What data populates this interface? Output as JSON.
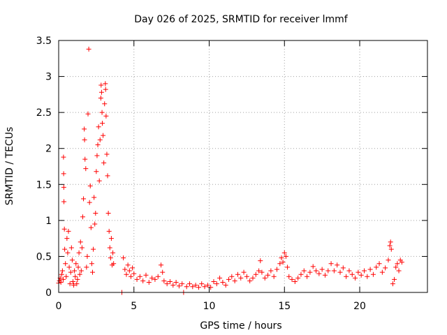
{
  "chart_data": {
    "type": "scatter",
    "title": "Day 026 of 2025, SRMTID for receiver lmmf",
    "xlabel": "GPS time / hours",
    "ylabel": "SRMTID / TECUs",
    "xlim": [
      0,
      24.5
    ],
    "ylim": [
      0,
      3.5
    ],
    "xticks": [
      0,
      5,
      10,
      15,
      20
    ],
    "xtick_labels": [
      "0",
      "5",
      "10",
      "15",
      "20"
    ],
    "yticks": [
      0,
      0.5,
      1,
      1.5,
      2,
      2.5,
      3,
      3.5
    ],
    "ytick_labels": [
      "0",
      "0.5",
      "1",
      "1.5",
      "2",
      "2.5",
      "3",
      "3.5"
    ],
    "grid": true,
    "marker": "+",
    "series_color": "#ff0000",
    "series": [
      {
        "name": "lmmf",
        "points": [
          [
            0.0,
            0.13
          ],
          [
            0.05,
            0.16
          ],
          [
            0.1,
            0.2
          ],
          [
            0.15,
            0.14
          ],
          [
            0.2,
            0.25
          ],
          [
            0.25,
            0.3
          ],
          [
            0.3,
            0.18
          ],
          [
            0.32,
            1.88
          ],
          [
            0.33,
            1.65
          ],
          [
            0.34,
            1.46
          ],
          [
            0.35,
            1.26
          ],
          [
            0.38,
            0.88
          ],
          [
            0.4,
            0.6
          ],
          [
            0.45,
            0.4
          ],
          [
            0.5,
            0.22
          ],
          [
            0.55,
            0.75
          ],
          [
            0.6,
            0.55
          ],
          [
            0.65,
            0.85
          ],
          [
            0.7,
            0.35
          ],
          [
            0.75,
            0.12
          ],
          [
            0.8,
            0.28
          ],
          [
            0.85,
            0.62
          ],
          [
            0.9,
            0.45
          ],
          [
            0.95,
            0.15
          ],
          [
            1.0,
            0.1
          ],
          [
            1.05,
            0.3
          ],
          [
            1.1,
            0.22
          ],
          [
            1.15,
            0.4
          ],
          [
            1.2,
            0.12
          ],
          [
            1.25,
            0.18
          ],
          [
            1.3,
            0.35
          ],
          [
            1.35,
            0.55
          ],
          [
            1.4,
            0.25
          ],
          [
            1.45,
            0.7
          ],
          [
            1.5,
            0.3
          ],
          [
            1.55,
            0.62
          ],
          [
            1.6,
            1.05
          ],
          [
            1.65,
            1.3
          ],
          [
            1.7,
            2.27
          ],
          [
            1.72,
            2.12
          ],
          [
            1.75,
            1.85
          ],
          [
            1.8,
            1.72
          ],
          [
            1.85,
            0.35
          ],
          [
            1.9,
            0.5
          ],
          [
            1.95,
            2.48
          ],
          [
            2.0,
            3.38
          ],
          [
            2.05,
            1.25
          ],
          [
            2.1,
            1.48
          ],
          [
            2.15,
            0.9
          ],
          [
            2.2,
            0.4
          ],
          [
            2.25,
            0.28
          ],
          [
            2.3,
            0.6
          ],
          [
            2.35,
            1.32
          ],
          [
            2.4,
            0.95
          ],
          [
            2.45,
            1.1
          ],
          [
            2.5,
            1.68
          ],
          [
            2.55,
            1.9
          ],
          [
            2.6,
            2.05
          ],
          [
            2.65,
            2.3
          ],
          [
            2.7,
            1.55
          ],
          [
            2.75,
            2.12
          ],
          [
            2.8,
            2.7
          ],
          [
            2.82,
            2.88
          ],
          [
            2.85,
            2.78
          ],
          [
            2.88,
            2.5
          ],
          [
            2.9,
            2.35
          ],
          [
            2.95,
            2.18
          ],
          [
            3.0,
            1.8
          ],
          [
            3.05,
            2.62
          ],
          [
            3.1,
            2.9
          ],
          [
            3.12,
            2.82
          ],
          [
            3.15,
            2.45
          ],
          [
            3.2,
            1.92
          ],
          [
            3.25,
            1.62
          ],
          [
            3.3,
            1.1
          ],
          [
            3.35,
            0.85
          ],
          [
            3.4,
            0.62
          ],
          [
            3.45,
            0.48
          ],
          [
            3.5,
            0.75
          ],
          [
            3.55,
            0.38
          ],
          [
            3.6,
            0.55
          ],
          [
            3.65,
            0.4
          ],
          [
            4.2,
            0.0
          ],
          [
            4.3,
            0.48
          ],
          [
            4.4,
            0.32
          ],
          [
            4.5,
            0.25
          ],
          [
            4.6,
            0.38
          ],
          [
            4.7,
            0.3
          ],
          [
            4.8,
            0.22
          ],
          [
            4.9,
            0.34
          ],
          [
            5.0,
            0.26
          ],
          [
            5.2,
            0.18
          ],
          [
            5.4,
            0.22
          ],
          [
            5.6,
            0.16
          ],
          [
            5.8,
            0.24
          ],
          [
            6.0,
            0.14
          ],
          [
            6.2,
            0.2
          ],
          [
            6.4,
            0.18
          ],
          [
            6.6,
            0.22
          ],
          [
            6.8,
            0.38
          ],
          [
            6.9,
            0.28
          ],
          [
            7.0,
            0.16
          ],
          [
            7.2,
            0.12
          ],
          [
            7.4,
            0.15
          ],
          [
            7.6,
            0.1
          ],
          [
            7.8,
            0.14
          ],
          [
            8.0,
            0.09
          ],
          [
            8.2,
            0.12
          ],
          [
            8.3,
            0.0
          ],
          [
            8.5,
            0.08
          ],
          [
            8.7,
            0.12
          ],
          [
            8.9,
            0.08
          ],
          [
            9.1,
            0.1
          ],
          [
            9.3,
            0.07
          ],
          [
            9.5,
            0.12
          ],
          [
            9.7,
            0.08
          ],
          [
            9.9,
            0.1
          ],
          [
            10.1,
            0.07
          ],
          [
            10.3,
            0.15
          ],
          [
            10.5,
            0.12
          ],
          [
            10.7,
            0.2
          ],
          [
            10.9,
            0.14
          ],
          [
            11.1,
            0.1
          ],
          [
            11.3,
            0.18
          ],
          [
            11.5,
            0.22
          ],
          [
            11.7,
            0.16
          ],
          [
            11.9,
            0.25
          ],
          [
            12.1,
            0.2
          ],
          [
            12.3,
            0.28
          ],
          [
            12.5,
            0.22
          ],
          [
            12.7,
            0.16
          ],
          [
            12.9,
            0.2
          ],
          [
            13.1,
            0.25
          ],
          [
            13.3,
            0.3
          ],
          [
            13.4,
            0.44
          ],
          [
            13.5,
            0.28
          ],
          [
            13.7,
            0.2
          ],
          [
            13.9,
            0.24
          ],
          [
            14.1,
            0.3
          ],
          [
            14.3,
            0.22
          ],
          [
            14.5,
            0.32
          ],
          [
            14.7,
            0.4
          ],
          [
            14.8,
            0.48
          ],
          [
            14.9,
            0.42
          ],
          [
            15.0,
            0.55
          ],
          [
            15.1,
            0.5
          ],
          [
            15.2,
            0.35
          ],
          [
            15.3,
            0.22
          ],
          [
            15.5,
            0.18
          ],
          [
            15.7,
            0.15
          ],
          [
            15.9,
            0.2
          ],
          [
            16.1,
            0.25
          ],
          [
            16.3,
            0.3
          ],
          [
            16.5,
            0.22
          ],
          [
            16.7,
            0.28
          ],
          [
            16.9,
            0.36
          ],
          [
            17.1,
            0.3
          ],
          [
            17.3,
            0.26
          ],
          [
            17.5,
            0.32
          ],
          [
            17.7,
            0.24
          ],
          [
            17.9,
            0.3
          ],
          [
            18.1,
            0.4
          ],
          [
            18.3,
            0.3
          ],
          [
            18.5,
            0.38
          ],
          [
            18.7,
            0.28
          ],
          [
            18.9,
            0.34
          ],
          [
            19.1,
            0.22
          ],
          [
            19.3,
            0.3
          ],
          [
            19.5,
            0.25
          ],
          [
            19.7,
            0.2
          ],
          [
            19.9,
            0.28
          ],
          [
            20.1,
            0.24
          ],
          [
            20.3,
            0.3
          ],
          [
            20.5,
            0.22
          ],
          [
            20.7,
            0.32
          ],
          [
            20.9,
            0.25
          ],
          [
            21.1,
            0.35
          ],
          [
            21.3,
            0.4
          ],
          [
            21.5,
            0.28
          ],
          [
            21.7,
            0.34
          ],
          [
            21.9,
            0.45
          ],
          [
            22.0,
            0.65
          ],
          [
            22.05,
            0.7
          ],
          [
            22.1,
            0.6
          ],
          [
            22.2,
            0.12
          ],
          [
            22.3,
            0.18
          ],
          [
            22.4,
            0.35
          ],
          [
            22.5,
            0.4
          ],
          [
            22.6,
            0.3
          ],
          [
            22.7,
            0.45
          ],
          [
            22.8,
            0.42
          ]
        ]
      }
    ]
  }
}
